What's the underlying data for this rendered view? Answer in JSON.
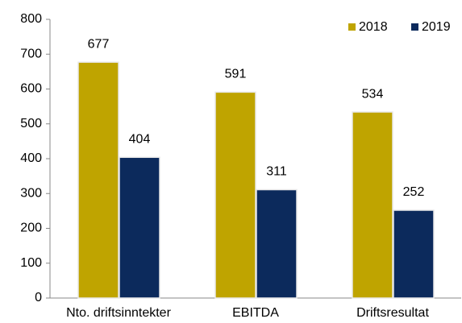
{
  "chart_data": {
    "type": "bar",
    "categories": [
      "Nto. driftsinntekter",
      "EBITDA",
      "Driftsresultat"
    ],
    "series": [
      {
        "name": "2018",
        "color": "#bfa400",
        "values": [
          677,
          591,
          534
        ]
      },
      {
        "name": "2019",
        "color": "#0c2a5c",
        "values": [
          404,
          311,
          252
        ]
      }
    ],
    "ylim": [
      0,
      800
    ],
    "yticks": [
      0,
      100,
      200,
      300,
      400,
      500,
      600,
      700,
      800
    ],
    "grid": false,
    "legend": "upper right"
  }
}
